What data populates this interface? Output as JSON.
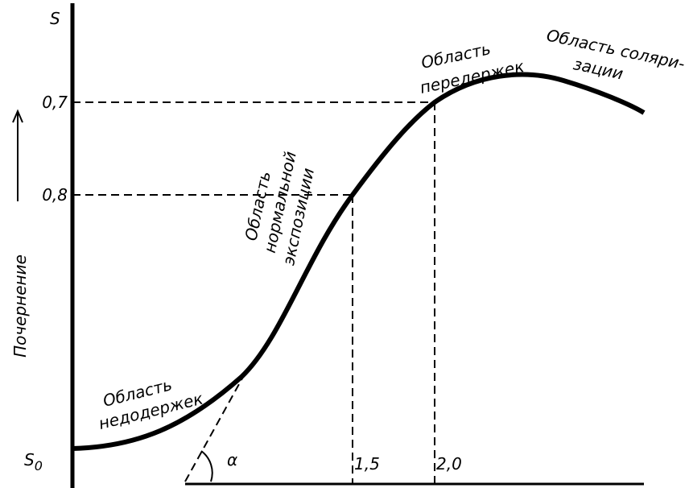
{
  "axis": {
    "y_label": "Почернение",
    "top_label": "S",
    "bottom_label": "S",
    "bottom_subscript": "0"
  },
  "levels": [
    "0,7",
    "0,8"
  ],
  "x_marks": [
    "1,5",
    "2,0"
  ],
  "angle": "α",
  "regions": {
    "under": [
      "Область",
      "недодержек"
    ],
    "normal": [
      "Область",
      "нормальной",
      "экспозиции"
    ],
    "over": [
      "Область",
      "передержек"
    ],
    "solar": [
      "Область соляри-",
      "зации"
    ]
  }
}
